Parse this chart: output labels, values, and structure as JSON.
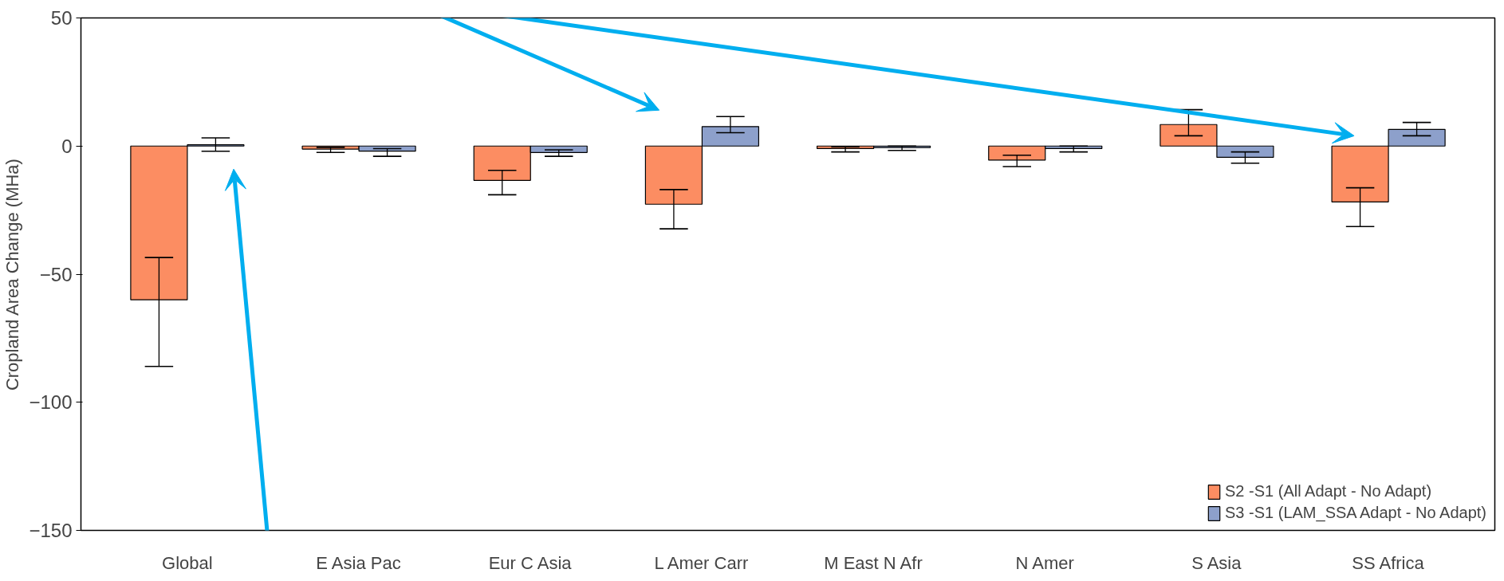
{
  "chart_data": {
    "type": "bar",
    "ylabel": "Cropland Area Change (MHa)",
    "categories": [
      "Global",
      "E Asia Pac",
      "Eur C Asia",
      "L Amer Carr",
      "M East N Afr",
      "N Amer",
      "S Asia",
      "SS Africa"
    ],
    "series": [
      {
        "name": "S2 -S1 (All Adapt - No Adapt)",
        "color": "#fc8d62",
        "values": [
          -60,
          -1.2,
          -13.4,
          -22.7,
          -1,
          -5.5,
          8.4,
          -21.8
        ],
        "errors": [
          [
            -86,
            -43.5
          ],
          [
            -2.5,
            -0.5
          ],
          [
            -19,
            -9.5
          ],
          [
            -32.3,
            -17
          ],
          [
            -2.3,
            -0.3
          ],
          [
            -8,
            -3.6
          ],
          [
            4,
            14.2
          ],
          [
            -31.4,
            -16.3
          ]
        ]
      },
      {
        "name": "S3 -S1 (LAM_SSA Adapt - No Adapt)",
        "color": "#8da0cb",
        "values": [
          0.5,
          -2,
          -2.5,
          7.6,
          -0.6,
          -1,
          -4.4,
          6.5
        ],
        "errors": [
          [
            -2,
            3.2
          ],
          [
            -4,
            -1
          ],
          [
            -4,
            -1.5
          ],
          [
            5.2,
            11.5
          ],
          [
            -1.7,
            0
          ],
          [
            -2.3,
            0
          ],
          [
            -6.7,
            -2.3
          ],
          [
            4,
            9.2
          ]
        ]
      }
    ],
    "ylim": [
      -150,
      50
    ],
    "yticks": [
      -150,
      -100,
      -50,
      0,
      50
    ],
    "grid": false,
    "legend": "bottom right"
  }
}
